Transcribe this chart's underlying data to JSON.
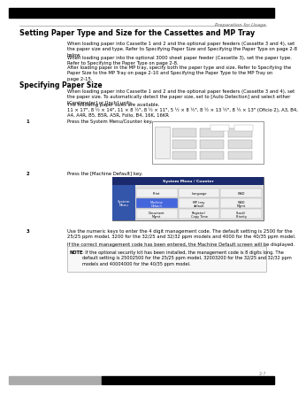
{
  "bg_color": "#ffffff",
  "header_text": "Preparation for Usage",
  "title": "Setting Paper Type and Size for the Cassettes and MP Tray",
  "title_fontsize": 5.8,
  "body_fontsize": 3.8,
  "section_fontsize": 5.5,
  "step_fontsize": 3.8,
  "note_fontsize": 3.6,
  "header_fontsize": 3.8,
  "pagenum_fontsize": 3.8,
  "para1": "When loading paper into Cassette 1 and 2 and the optional paper feeders (Cassette 3 and 4), set\nthe paper size and type. Refer to Specifying Paper Size and Specifying the Paper Type on page 2-8\nbelow.",
  "para2": "When loading paper into the optional 3000 sheet paper feeder (Cassette 3), set the paper type.\nRefer to Specifying the Paper Type on page 2-8.",
  "para3": "After loading paper in the MP tray, specify both the paper type and size. Refer to Specifying the\nPaper Size to the MP Tray on page 2-10 and Specifying the Paper Type to the MP Tray on\npage 2-15.",
  "section2": "Specifying Paper Size",
  "para4": "When loading paper into Cassette 1 and 2 and the optional paper feeders (Cassette 3 and 4), set\nthe paper size. To automatically detect the paper size, set to [Auto Detection] and select either\n[Centimeter] or [Inch] units.",
  "para5": "The following paper sizes are available.",
  "para6": "11 × 17\", 8 ½ × 14\", 11 × 8 ½\", 8 ½ × 11\", 5 ½ × 8 ½\", 8 ½ × 13 ½\", 8 ½ × 13\" (Oficio 2), A3, B4,\nA4, A4R, B5, B5R, A5R, Folio, B4, 16K, 16KR",
  "step1_num": "1",
  "step1_text": "Press the System Menu/Counter key.",
  "step2_num": "2",
  "step2_text": "Press the [Machine Default] key.",
  "step3_num": "3",
  "step3_text": "Use the numeric keys to enter the 4 digit management code. The default setting is 2500 for the\n25/25 ppm model, 3200 for the 32/25 and 32/32 ppm models and 4000 for the 40/35 ppm model.",
  "para_correct": "If the correct management code has been entered, the Machine Default screen will be displayed.",
  "note_title": "NOTE",
  "note_text": ": If the optional security kit has been installed, the management code is 8 digits long. The\ndefault setting is 25002500 for the 25/25 ppm model, 32003200 for the 32/25 and 32/32 ppm\nmodels and 40004000 for the 40/35 ppm model.",
  "page_num": "2-7",
  "lm": 0.04,
  "rm": 0.97,
  "im": 0.22
}
